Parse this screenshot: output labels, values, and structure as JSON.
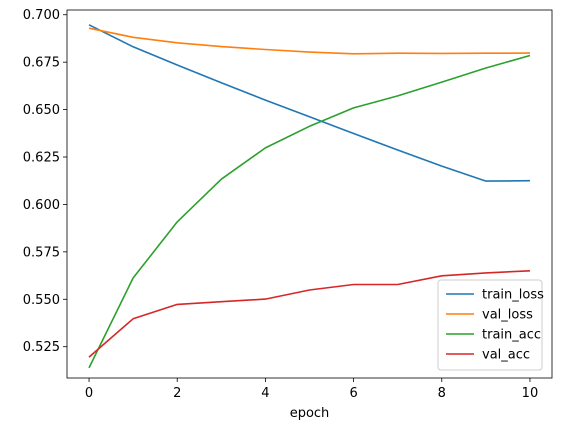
{
  "chart_data": {
    "type": "line",
    "title": "",
    "xlabel": "epoch",
    "ylabel": "",
    "x": [
      0,
      1,
      2,
      3,
      4,
      5,
      6,
      7,
      8,
      9,
      10
    ],
    "xlim": [
      -0.5,
      10.5
    ],
    "ylim": [
      0.5085,
      0.7025
    ],
    "x_ticks": [
      0,
      2,
      4,
      6,
      8,
      10
    ],
    "x_tick_labels": [
      "0",
      "2",
      "4",
      "6",
      "8",
      "10"
    ],
    "y_ticks": [
      0.525,
      0.55,
      0.575,
      0.6,
      0.625,
      0.65,
      0.675,
      0.7
    ],
    "y_tick_labels": [
      "0.525",
      "0.550",
      "0.575",
      "0.600",
      "0.625",
      "0.650",
      "0.675",
      "0.700"
    ],
    "grid": false,
    "legend_position": "bottom-right",
    "series": [
      {
        "name": "train_loss",
        "color": "#1f77b4",
        "values": [
          0.6947,
          0.6831,
          0.6735,
          0.6641,
          0.655,
          0.6462,
          0.6374,
          0.6287,
          0.6202,
          0.6123,
          0.6125
        ]
      },
      {
        "name": "val_loss",
        "color": "#ff7f0e",
        "values": [
          0.6929,
          0.6881,
          0.6852,
          0.6832,
          0.6817,
          0.6803,
          0.6794,
          0.6797,
          0.6796,
          0.6797,
          0.6798
        ]
      },
      {
        "name": "train_acc",
        "color": "#2ca02c",
        "values": [
          0.5138,
          0.5612,
          0.5908,
          0.6133,
          0.6298,
          0.6412,
          0.6509,
          0.6572,
          0.6645,
          0.6719,
          0.6785
        ]
      },
      {
        "name": "val_acc",
        "color": "#d62728",
        "values": [
          0.5195,
          0.5397,
          0.5473,
          0.5487,
          0.5501,
          0.5549,
          0.5578,
          0.5578,
          0.5624,
          0.5639,
          0.565
        ]
      }
    ]
  }
}
